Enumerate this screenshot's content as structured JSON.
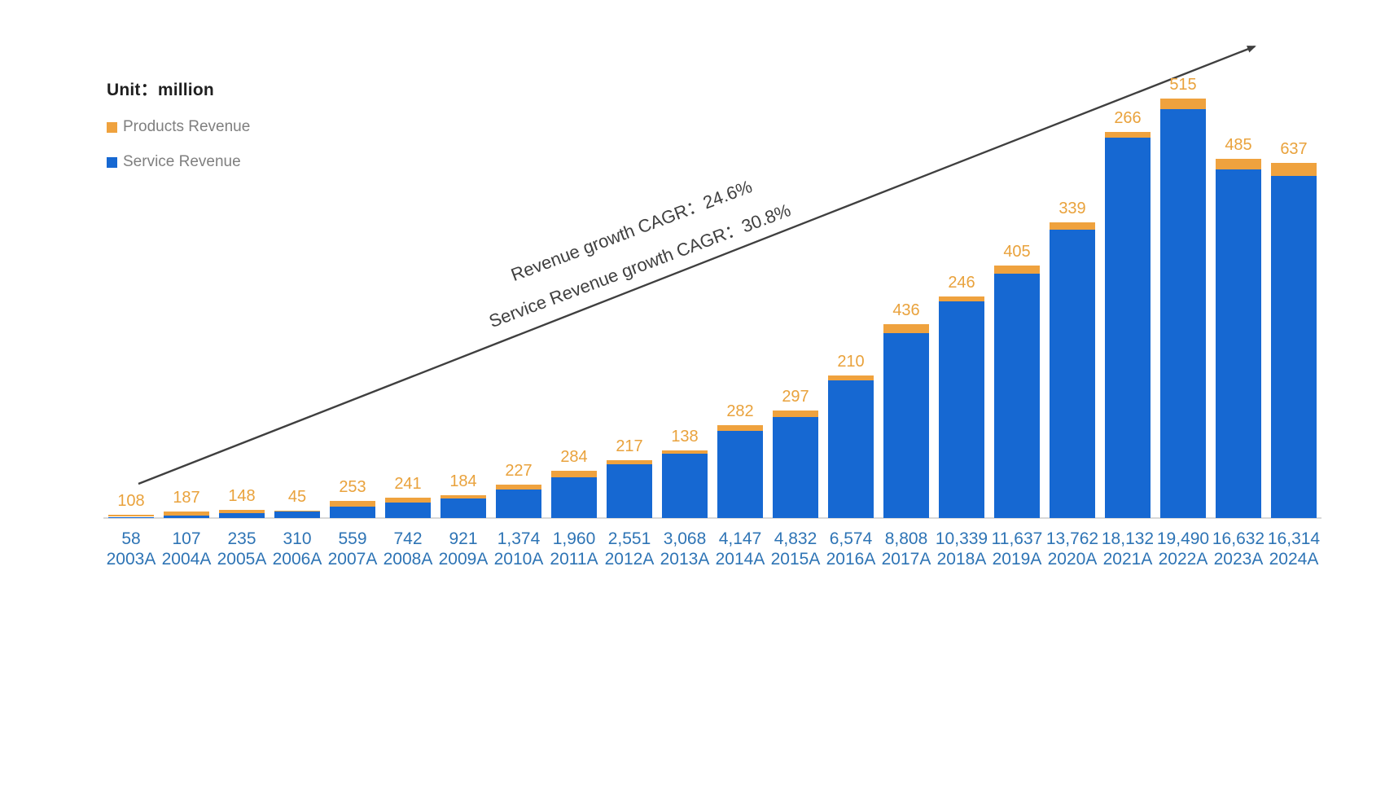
{
  "legend": {
    "unit_label": "Unit：million",
    "items": [
      {
        "label": "Products Revenue",
        "color": "#efa23e"
      },
      {
        "label": "Service Revenue",
        "color": "#1668d2"
      }
    ]
  },
  "annotations": {
    "revenue_cagr": "Revenue growth CAGR：24.6%",
    "service_revenue_cagr": "Service Revenue growth CAGR：30.8%"
  },
  "colors": {
    "service_bar": "#1668d2",
    "products_bar": "#efa23e",
    "axis_label_text": "#2e74b5",
    "products_label_text": "#e9a23c",
    "annotation_text": "#3f3f3f",
    "arrow": "#3f3f3f",
    "baseline": "#d9d9d9",
    "legend_text": "#7f7f7f"
  },
  "chart_data": {
    "type": "bar",
    "stacked": true,
    "title": "Unit：million",
    "xlabel": "",
    "ylabel": "",
    "grid": false,
    "legend_position": "top-left",
    "ylim": [
      0,
      20005
    ],
    "categories": [
      "2003A",
      "2004A",
      "2005A",
      "2006A",
      "2007A",
      "2008A",
      "2009A",
      "2010A",
      "2011A",
      "2012A",
      "2013A",
      "2014A",
      "2015A",
      "2016A",
      "2017A",
      "2018A",
      "2019A",
      "2020A",
      "2021A",
      "2022A",
      "2023A",
      "2024A"
    ],
    "series": [
      {
        "name": "Service Revenue",
        "color": "#1668d2",
        "values": [
          58,
          107,
          235,
          310,
          559,
          742,
          921,
          1374,
          1960,
          2551,
          3068,
          4147,
          4832,
          6574,
          8808,
          10339,
          11637,
          13762,
          18132,
          19490,
          16632,
          16314
        ]
      },
      {
        "name": "Products Revenue",
        "color": "#efa23e",
        "values": [
          108,
          187,
          148,
          45,
          253,
          241,
          184,
          227,
          284,
          217,
          138,
          282,
          297,
          210,
          436,
          246,
          405,
          339,
          266,
          515,
          485,
          637
        ]
      }
    ],
    "annotations": [
      "Revenue growth CAGR：24.6%",
      "Service Revenue growth CAGR：30.8%"
    ]
  }
}
